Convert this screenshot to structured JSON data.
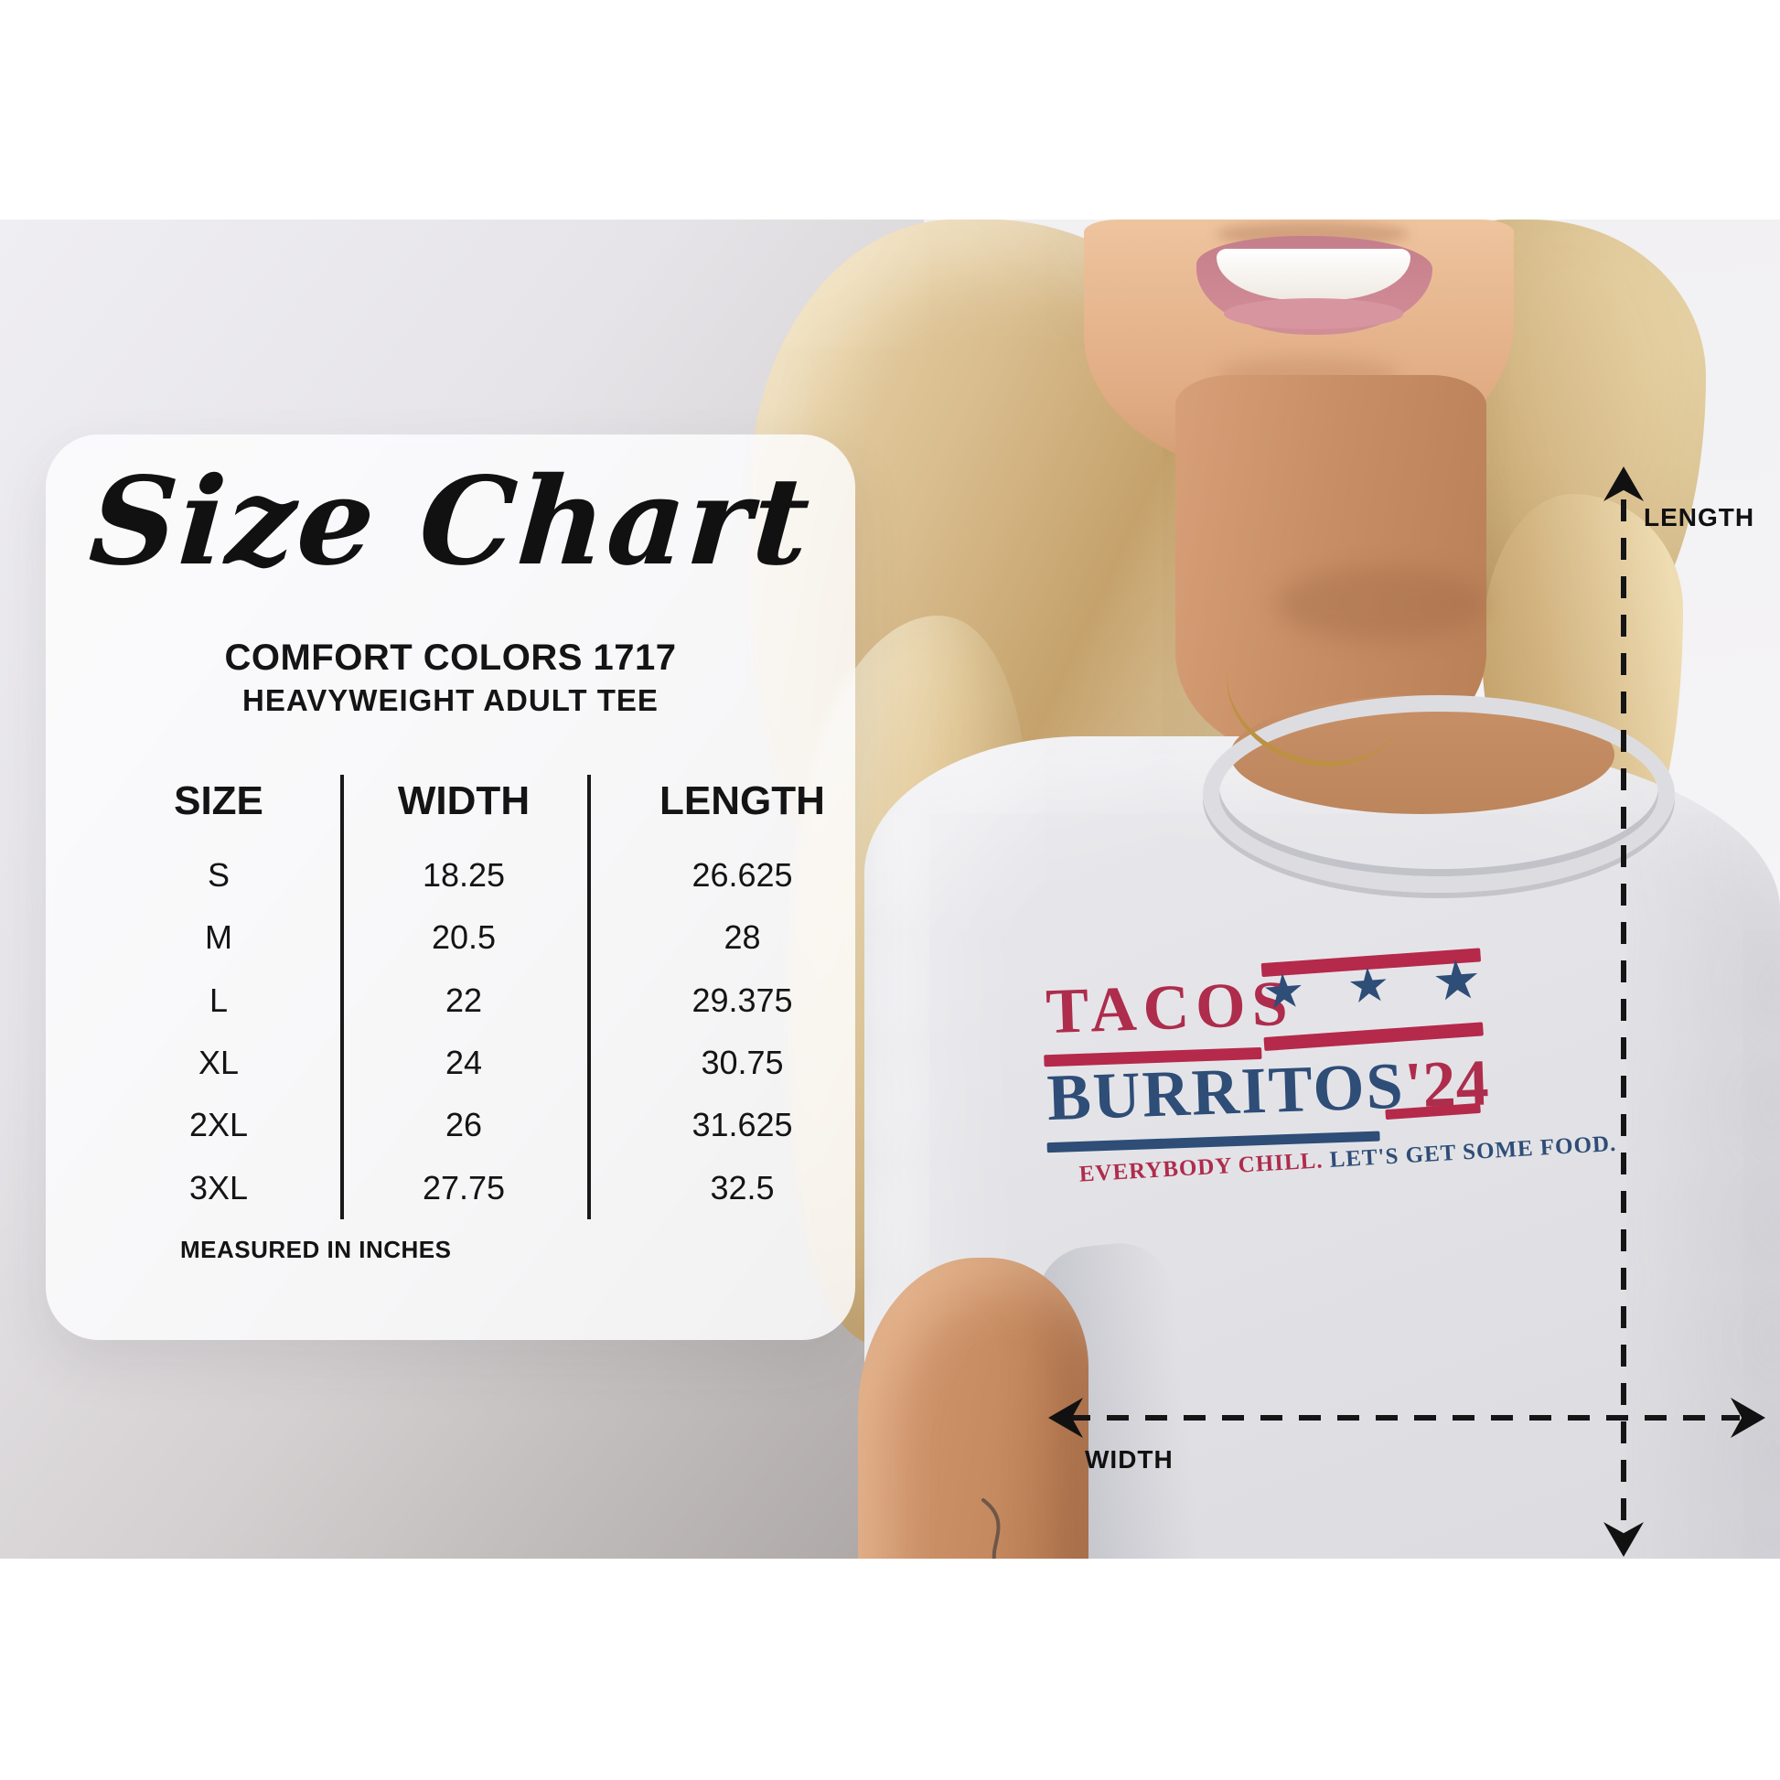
{
  "size_chart_card": {
    "title": "Size Chart",
    "subtitle1": "COMFORT COLORS 1717",
    "subtitle2": "HEAVYWEIGHT ADULT TEE",
    "table": {
      "headers": [
        "SIZE",
        "WIDTH",
        "LENGTH"
      ],
      "rows": [
        [
          "S",
          "18.25",
          "26.625"
        ],
        [
          "M",
          "20.5",
          "28"
        ],
        [
          "L",
          "22",
          "29.375"
        ],
        [
          "XL",
          "24",
          "30.75"
        ],
        [
          "2XL",
          "26",
          "31.625"
        ],
        [
          "3XL",
          "27.75",
          "32.5"
        ]
      ]
    },
    "footnote": "MEASURED IN INCHES"
  },
  "tshirt_graphic": {
    "line1": "TACOS",
    "line2": "BURRITOS",
    "year": "'24",
    "stars": [
      "★",
      "★",
      "★"
    ],
    "tagline_red": "EVERYBODY CHILL.",
    "tagline_navy": "LET'S GET SOME FOOD.",
    "colors": {
      "red": "#ae2c4c",
      "navy": "#2e4d77"
    }
  },
  "measurements": {
    "length_label": "LENGTH",
    "width_label": "WIDTH"
  },
  "chart_data": {
    "type": "table",
    "title": "Size Chart",
    "subtitle": "COMFORT COLORS 1717 HEAVYWEIGHT ADULT TEE",
    "columns": [
      "SIZE",
      "WIDTH",
      "LENGTH"
    ],
    "rows": [
      [
        "S",
        18.25,
        26.625
      ],
      [
        "M",
        20.5,
        28
      ],
      [
        "L",
        22,
        29.375
      ],
      [
        "XL",
        24,
        30.75
      ],
      [
        "2XL",
        26,
        31.625
      ],
      [
        "3XL",
        27.75,
        32.5
      ]
    ],
    "units": "inches",
    "footnote": "MEASURED IN INCHES"
  }
}
